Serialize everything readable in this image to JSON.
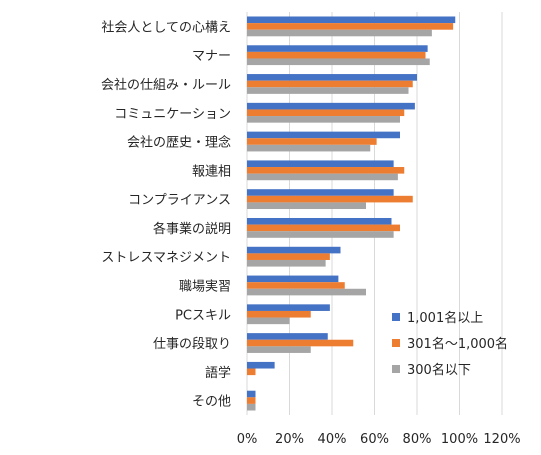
{
  "chart_data": {
    "type": "bar",
    "orientation": "horizontal",
    "categories": [
      "社会人としての心構え",
      "マナー",
      "会社の仕組み・ルール",
      "コミュニケーション",
      "会社の歴史・理念",
      "報連相",
      "コンプライアンス",
      "各事業の説明",
      "ストレスマネジメント",
      "職場実習",
      "PCスキル",
      "仕事の段取り",
      "語学",
      "その他"
    ],
    "series": [
      {
        "name": "1,001名以上",
        "color": "#4472c4",
        "values": [
          98,
          85,
          80,
          79,
          72,
          69,
          69,
          68,
          44,
          43,
          39,
          38,
          13,
          4
        ]
      },
      {
        "name": "301名～1,000名",
        "color": "#ed7d31",
        "values": [
          97,
          84,
          78,
          74,
          61,
          74,
          78,
          72,
          39,
          46,
          30,
          50,
          4,
          4
        ]
      },
      {
        "name": "300名以下",
        "color": "#a5a5a5",
        "values": [
          87,
          86,
          76,
          72,
          58,
          71,
          56,
          69,
          37,
          56,
          20,
          30,
          0,
          4
        ]
      }
    ],
    "xticks": [
      "0%",
      "20%",
      "40%",
      "60%",
      "80%",
      "100%",
      "120%"
    ],
    "xlim": [
      0,
      120
    ],
    "grid": true,
    "legend_position": "lower-right",
    "title": "",
    "xlabel": "",
    "ylabel": ""
  }
}
